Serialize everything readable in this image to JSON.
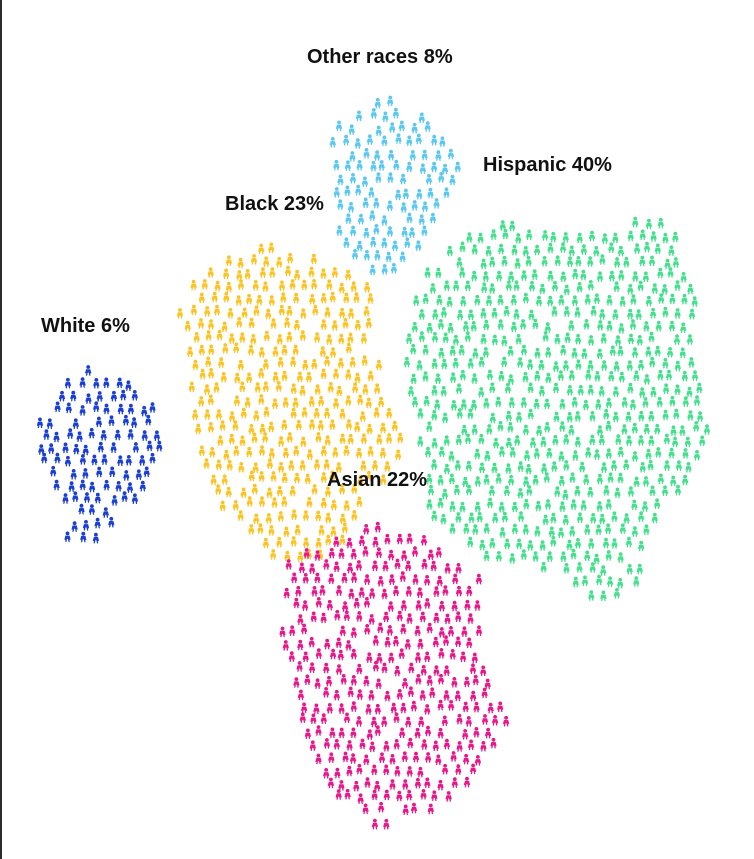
{
  "chart_data": {
    "type": "pictogram",
    "unit": "person-icon",
    "series": [
      {
        "name": "White",
        "value": 6,
        "label": "White 6%",
        "color": "#1a3fd6"
      },
      {
        "name": "Black",
        "value": 23,
        "label": "Black 23%",
        "color": "#fcc423"
      },
      {
        "name": "Other races",
        "value": 8,
        "label": "Other races 8%",
        "color": "#5bc8f0"
      },
      {
        "name": "Hispanic",
        "value": 40,
        "label": "Hispanic 40%",
        "color": "#44e08e"
      },
      {
        "name": "Asian",
        "value": 22,
        "label": "Asian 22%",
        "color": "#e8188c"
      }
    ]
  }
}
